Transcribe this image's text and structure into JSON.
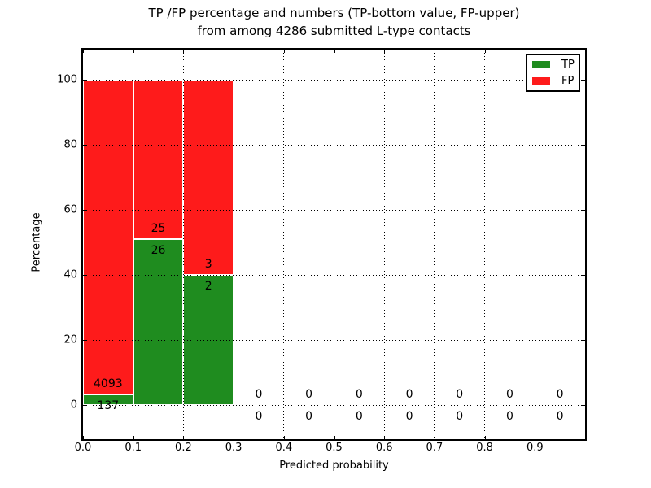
{
  "title": {
    "line1": "TP /FP percentage and numbers (TP-bottom value, FP-upper)",
    "line2": "from among 4286 submitted L-type contacts"
  },
  "axes": {
    "x_label": "Predicted probability",
    "y_label": "Percentage"
  },
  "legend": {
    "items": [
      {
        "label": "TP",
        "color": "#1f8c1f"
      },
      {
        "label": "FP",
        "color": "#fe1b1b"
      }
    ]
  },
  "colors": {
    "tp": "#1f8c1f",
    "fp": "#fe1b1b",
    "grid": "#000000",
    "background": "#ffffff"
  },
  "chart_data": {
    "type": "bar",
    "stacked": true,
    "title": "TP /FP percentage and numbers (TP-bottom value, FP-upper) from among 4286 submitted L-type contacts",
    "xlabel": "Predicted probability",
    "ylabel": "Percentage",
    "xlim": [
      0.0,
      1.0
    ],
    "ylim": [
      -10,
      110
    ],
    "grid": true,
    "legend_position": "upper right",
    "x_ticks": [
      {
        "value": 0.0,
        "label": "0.0"
      },
      {
        "value": 0.1,
        "label": "0.1"
      },
      {
        "value": 0.2,
        "label": "0.2"
      },
      {
        "value": 0.3,
        "label": "0.3"
      },
      {
        "value": 0.4,
        "label": "0.4"
      },
      {
        "value": 0.5,
        "label": "0.5"
      },
      {
        "value": 0.6,
        "label": "0.6"
      },
      {
        "value": 0.7,
        "label": "0.7"
      },
      {
        "value": 0.8,
        "label": "0.8"
      },
      {
        "value": 0.9,
        "label": "0.9"
      }
    ],
    "y_ticks": [
      {
        "value": 0,
        "label": "0"
      },
      {
        "value": 20,
        "label": "20"
      },
      {
        "value": 40,
        "label": "40"
      },
      {
        "value": 60,
        "label": "60"
      },
      {
        "value": 80,
        "label": "80"
      },
      {
        "value": 100,
        "label": "100"
      }
    ],
    "series": [
      {
        "name": "TP",
        "color": "#1f8c1f"
      },
      {
        "name": "FP",
        "color": "#fe1b1b"
      }
    ],
    "total_contacts": 4286,
    "bins": [
      {
        "range": [
          0.0,
          0.1
        ],
        "tp_count": "137",
        "fp_count": "4093",
        "tp_pct": 3.24,
        "fp_pct": 96.76
      },
      {
        "range": [
          0.1,
          0.2
        ],
        "tp_count": "26",
        "fp_count": "25",
        "tp_pct": 50.98,
        "fp_pct": 49.02
      },
      {
        "range": [
          0.2,
          0.3
        ],
        "tp_count": "2",
        "fp_count": "3",
        "tp_pct": 40.0,
        "fp_pct": 60.0
      },
      {
        "range": [
          0.3,
          0.4
        ],
        "tp_count": "0",
        "fp_count": "0",
        "tp_pct": 0,
        "fp_pct": 0
      },
      {
        "range": [
          0.4,
          0.5
        ],
        "tp_count": "0",
        "fp_count": "0",
        "tp_pct": 0,
        "fp_pct": 0
      },
      {
        "range": [
          0.5,
          0.6
        ],
        "tp_count": "0",
        "fp_count": "0",
        "tp_pct": 0,
        "fp_pct": 0
      },
      {
        "range": [
          0.6,
          0.7
        ],
        "tp_count": "0",
        "fp_count": "0",
        "tp_pct": 0,
        "fp_pct": 0
      },
      {
        "range": [
          0.7,
          0.8
        ],
        "tp_count": "0",
        "fp_count": "0",
        "tp_pct": 0,
        "fp_pct": 0
      },
      {
        "range": [
          0.8,
          0.9
        ],
        "tp_count": "0",
        "fp_count": "0",
        "tp_pct": 0,
        "fp_pct": 0
      },
      {
        "range": [
          0.9,
          1.0
        ],
        "tp_count": "0",
        "fp_count": "0",
        "tp_pct": 0,
        "fp_pct": 0
      }
    ]
  }
}
